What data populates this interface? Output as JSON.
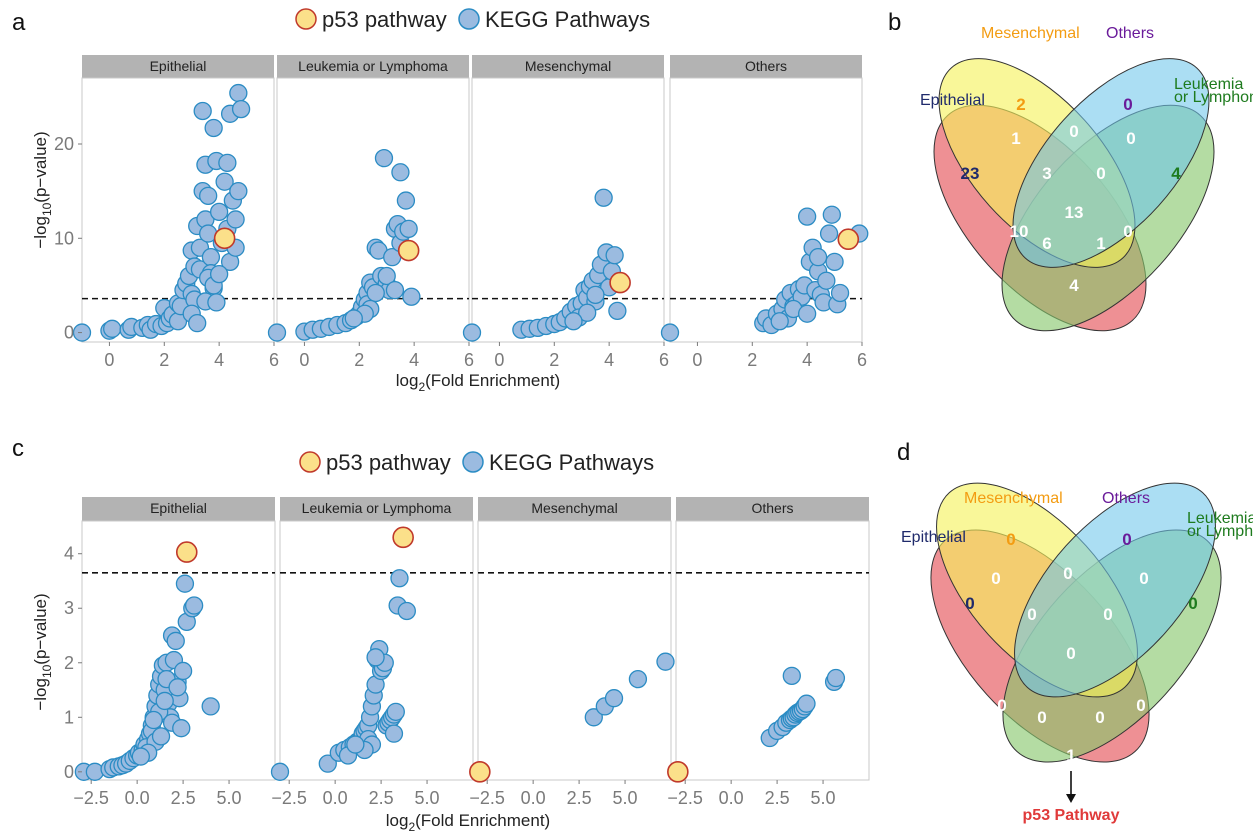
{
  "panels": {
    "a": "a",
    "b": "b",
    "c": "c",
    "d": "d"
  },
  "legend": {
    "highlight_label": "p53 pathway",
    "series_label": "KEGG Pathways"
  },
  "colors": {
    "point_fill": "#9bbbe0",
    "point_stroke": "#2b8cc4",
    "highlight_fill": "#fbe08a",
    "highlight_stroke": "#c0392b",
    "strip_bg": "#b3b3b3",
    "threshold_line": "#111111",
    "epithelial": "#e8656b",
    "mesenchymal": "#f5f25a",
    "others": "#6ec6ea",
    "leukemia": "#86c76a",
    "label_epithelial": "#1f2a6b",
    "label_mesenchymal": "#f39c12",
    "label_others": "#6a1b9a",
    "label_leukemia": "#1e7b1e",
    "p53_annotation": "#e03a3a"
  },
  "chart_data": [
    {
      "type": "scatter",
      "facets": [
        "Epithelial",
        "Leukemia or Lymphoma",
        "Mesenchymal",
        "Others"
      ],
      "xlabel": "log2(Fold Enrichment)",
      "ylabel": "−log10(p−value)",
      "xlim": [
        -1,
        6
      ],
      "ylim": [
        -1,
        27
      ],
      "xticks": [
        "0",
        "2",
        "4",
        "6"
      ],
      "yticks": [
        "0",
        "10",
        "20"
      ],
      "threshold_y": 3.6,
      "series": [
        {
          "name": "KEGG Pathways",
          "facet": "Epithelial",
          "x": [
            -1,
            0,
            0.1,
            0.7,
            0.8,
            1.2,
            1.4,
            1.5,
            1.7,
            1.9,
            2.0,
            2.1,
            2.2,
            2.3,
            2.5,
            2.5,
            2.6,
            2.7,
            2.8,
            2.9,
            3.0,
            3.0,
            3.1,
            3.1,
            3.2,
            3.3,
            3.3,
            3.4,
            3.4,
            3.5,
            3.5,
            3.6,
            3.6,
            3.7,
            3.7,
            3.8,
            3.8,
            3.9,
            4.0,
            4.1,
            4.2,
            4.3,
            4.3,
            4.4,
            4.5,
            4.6,
            4.7,
            4.7,
            4.8,
            3.5,
            3.6,
            3.9,
            4.4,
            4.6,
            3.0,
            3.2,
            3.8,
            4.0
          ],
          "y": [
            0,
            0.2,
            0.4,
            0.3,
            0.6,
            0.5,
            0.8,
            0.3,
            0.9,
            0.7,
            2.6,
            1.0,
            1.5,
            1.9,
            1.2,
            3.1,
            2.8,
            4.5,
            5.2,
            6.0,
            8.7,
            4.1,
            7.0,
            3.5,
            11.3,
            6.7,
            9.0,
            23.5,
            15.0,
            12.0,
            17.8,
            14.5,
            10.5,
            8.0,
            6.3,
            21.7,
            4.7,
            18.2,
            12.8,
            9.5,
            16.0,
            18.0,
            11.0,
            23.2,
            14.0,
            12.0,
            25.4,
            15.0,
            23.7,
            3.3,
            5.8,
            3.2,
            7.5,
            9.0,
            2.0,
            1.0,
            5.0,
            6.2
          ]
        },
        {
          "name": "p53 pathway",
          "facet": "Epithelial",
          "x": [
            4.2
          ],
          "y": [
            10.0
          ]
        },
        {
          "name": "KEGG Pathways",
          "facet": "Leukemia or Lymphoma",
          "x": [
            -1,
            0,
            0.3,
            0.6,
            0.9,
            1.2,
            1.5,
            1.7,
            1.9,
            2.0,
            2.1,
            2.2,
            2.3,
            2.3,
            2.4,
            2.5,
            2.6,
            2.7,
            2.8,
            2.9,
            3.0,
            3.1,
            3.2,
            3.3,
            3.4,
            3.5,
            3.5,
            3.6,
            3.7,
            3.8,
            3.9,
            2.6,
            2.4,
            2.2,
            3.0,
            3.3,
            1.8
          ],
          "y": [
            0,
            0.1,
            0.3,
            0.4,
            0.6,
            0.8,
            1.0,
            1.3,
            1.7,
            2.0,
            2.7,
            3.5,
            4.2,
            3.0,
            5.3,
            4.8,
            9.0,
            8.7,
            6.0,
            18.5,
            5.2,
            4.5,
            8.0,
            11.0,
            11.5,
            17.0,
            9.5,
            10.7,
            14.0,
            11.0,
            3.8,
            4.2,
            2.5,
            2.0,
            6.0,
            4.5,
            1.5
          ]
        },
        {
          "name": "p53 pathway",
          "facet": "Leukemia or Lymphoma",
          "x": [
            3.8
          ],
          "y": [
            8.7
          ]
        },
        {
          "name": "KEGG Pathways",
          "facet": "Mesenchymal",
          "x": [
            -1,
            0.8,
            1.1,
            1.4,
            1.7,
            2.0,
            2.2,
            2.4,
            2.6,
            2.8,
            3.0,
            3.1,
            3.2,
            3.3,
            3.4,
            3.5,
            3.6,
            3.7,
            3.8,
            3.9,
            4.0,
            4.1,
            4.2,
            2.9,
            3.2,
            3.5,
            2.7,
            4.3
          ],
          "y": [
            0,
            0.3,
            0.4,
            0.5,
            0.7,
            0.9,
            1.1,
            1.5,
            2.2,
            2.8,
            3.1,
            4.5,
            3.7,
            4.9,
            5.5,
            3.3,
            6.1,
            7.2,
            14.3,
            8.5,
            4.8,
            6.5,
            8.2,
            1.6,
            2.1,
            4.0,
            1.2,
            2.3
          ]
        },
        {
          "name": "p53 pathway",
          "facet": "Mesenchymal",
          "x": [
            4.4
          ],
          "y": [
            5.3
          ]
        },
        {
          "name": "KEGG Pathways",
          "facet": "Others",
          "x": [
            -1,
            2.4,
            2.5,
            2.7,
            2.9,
            3.1,
            3.2,
            3.3,
            3.4,
            3.5,
            3.6,
            3.7,
            3.8,
            3.9,
            4.0,
            4.1,
            4.2,
            4.3,
            4.4,
            4.5,
            4.6,
            4.7,
            4.8,
            4.9,
            5.0,
            5.1,
            5.2,
            3.0,
            3.5,
            4.0,
            4.4,
            5.9
          ],
          "y": [
            0,
            1.0,
            1.5,
            0.8,
            2.0,
            2.5,
            3.5,
            1.5,
            4.2,
            2.8,
            3.0,
            4.6,
            3.8,
            5.0,
            12.3,
            7.5,
            9.0,
            4.5,
            6.5,
            4.0,
            3.2,
            5.5,
            10.5,
            12.5,
            7.5,
            3.0,
            4.2,
            1.2,
            2.5,
            2.0,
            8.0,
            10.5
          ]
        },
        {
          "name": "p53 pathway",
          "facet": "Others",
          "x": [
            5.5
          ],
          "y": [
            9.9
          ]
        }
      ]
    },
    {
      "type": "scatter",
      "facets": [
        "Epithelial",
        "Leukemia or Lymphoma",
        "Mesenchymal",
        "Others"
      ],
      "xlabel": "log2(Fold Enrichment)",
      "ylabel": "−log10(p−value)",
      "xlim": [
        -3,
        7.5
      ],
      "ylim": [
        -0.15,
        4.6
      ],
      "xticks": [
        "−2.5",
        "0.0",
        "2.5",
        "5.0"
      ],
      "yticks": [
        "0",
        "1",
        "2",
        "3",
        "4"
      ],
      "threshold_y": 3.65,
      "series": [
        {
          "name": "KEGG Pathways",
          "facet": "Epithelial",
          "x": [
            -2.9,
            -2.3,
            -1.5,
            -1.3,
            -1.0,
            -0.8,
            -0.6,
            -0.4,
            -0.2,
            0.0,
            0.1,
            0.3,
            0.4,
            0.6,
            0.7,
            0.8,
            0.9,
            1.0,
            1.1,
            1.2,
            1.3,
            1.4,
            1.5,
            1.6,
            1.7,
            1.8,
            1.9,
            2.0,
            2.1,
            2.2,
            2.3,
            2.5,
            2.6,
            2.7,
            3.0,
            3.1,
            4.0,
            0.5,
            0.8,
            1.2,
            1.5,
            1.0,
            0.6,
            1.9,
            2.4,
            1.6,
            1.3,
            0.9,
            2.2,
            0.2
          ],
          "y": [
            0.0,
            0.0,
            0.05,
            0.08,
            0.1,
            0.12,
            0.15,
            0.2,
            0.25,
            0.3,
            0.35,
            0.4,
            0.5,
            0.6,
            0.7,
            0.85,
            1.0,
            1.2,
            1.4,
            1.6,
            1.75,
            1.95,
            1.5,
            2.0,
            1.25,
            1.0,
            2.5,
            2.05,
            2.4,
            1.65,
            1.35,
            1.85,
            3.45,
            2.75,
            3.0,
            3.05,
            1.2,
            0.45,
            0.75,
            1.1,
            1.3,
            0.55,
            0.35,
            0.9,
            0.8,
            1.7,
            0.65,
            0.95,
            1.55,
            0.28
          ]
        },
        {
          "name": "p53 pathway",
          "facet": "Epithelial",
          "x": [
            2.7
          ],
          "y": [
            4.03
          ]
        },
        {
          "name": "KEGG Pathways",
          "facet": "Leukemia or Lymphoma",
          "x": [
            -3.0,
            -0.4,
            0.2,
            0.5,
            0.8,
            1.0,
            1.2,
            1.4,
            1.5,
            1.6,
            1.7,
            1.8,
            1.9,
            2.0,
            2.1,
            2.2,
            2.3,
            2.4,
            2.5,
            2.6,
            2.7,
            2.8,
            2.9,
            3.0,
            3.1,
            3.2,
            3.3,
            3.4,
            3.5,
            3.9,
            3.2,
            1.8,
            2.0,
            1.6,
            2.2,
            0.7,
            1.1
          ],
          "y": [
            0.0,
            0.15,
            0.35,
            0.4,
            0.45,
            0.5,
            0.55,
            0.6,
            0.7,
            0.75,
            0.8,
            0.85,
            1.0,
            1.2,
            1.4,
            1.6,
            2.05,
            2.25,
            1.85,
            1.9,
            2.0,
            0.85,
            0.9,
            0.95,
            1.0,
            1.05,
            1.1,
            3.05,
            3.55,
            2.95,
            0.7,
            0.6,
            0.5,
            0.4,
            2.1,
            0.3,
            0.5
          ]
        },
        {
          "name": "p53 pathway",
          "facet": "Leukemia or Lymphoma",
          "x": [
            3.7
          ],
          "y": [
            4.3
          ]
        },
        {
          "name": "KEGG Pathways",
          "facet": "Mesenchymal",
          "x": [
            3.3,
            3.9,
            4.4,
            5.7,
            7.2
          ],
          "y": [
            1.0,
            1.2,
            1.35,
            1.7,
            2.02
          ]
        },
        {
          "name": "p53 pathway",
          "facet": "Mesenchymal",
          "x": [
            -2.9
          ],
          "y": [
            0.0
          ]
        },
        {
          "name": "KEGG Pathways",
          "facet": "Others",
          "x": [
            2.1,
            2.5,
            2.8,
            3.0,
            3.2,
            3.3,
            3.4,
            3.5,
            3.6,
            3.7,
            3.8,
            3.9,
            4.0,
            4.1,
            5.6,
            5.7,
            3.3
          ],
          "y": [
            0.62,
            0.75,
            0.82,
            0.9,
            0.95,
            0.98,
            1.0,
            1.05,
            1.08,
            1.1,
            1.12,
            1.15,
            1.2,
            1.25,
            1.65,
            1.72,
            1.76
          ]
        },
        {
          "name": "p53 pathway",
          "facet": "Others",
          "x": [
            -2.9
          ],
          "y": [
            0.0
          ]
        }
      ]
    }
  ],
  "venn_b": {
    "labels": {
      "epithelial": "Epithelial",
      "mesenchymal": "Mesenchymal",
      "others": "Others",
      "leukemia_1": "Leukemia",
      "leukemia_2": "or Lymphoma"
    },
    "counts": {
      "epi_only": "23",
      "mes_only": "2",
      "oth_only": "0",
      "leu_only": "4",
      "epi_mes": "1",
      "mes_oth": "0",
      "oth_leu": "0",
      "epi_mes_oth": "3",
      "mes_oth_leu": "0",
      "all": "13",
      "epi_mes_leu": "10",
      "epi_oth_leu": "1",
      "epi_leu": "6",
      "epi_oth": "4",
      "mes_leu": "0"
    }
  },
  "venn_d": {
    "labels": {
      "epithelial": "Epithelial",
      "mesenchymal": "Mesenchymal",
      "others": "Others",
      "leukemia_1": "Leukemia",
      "leukemia_2": "or Lymphoma",
      "annotation": "p53 Pathway"
    },
    "counts": {
      "epi_only": "0",
      "mes_only": "0",
      "oth_only": "0",
      "leu_only": "0",
      "epi_mes": "0",
      "mes_oth": "0",
      "oth_leu": "0",
      "epi_mes_oth": "0",
      "mes_oth_leu": "0",
      "all": "0",
      "epi_mes_leu": "0",
      "epi_oth_leu": "0",
      "epi_leu": "0",
      "epi_oth": "1",
      "mes_leu": "0"
    }
  }
}
